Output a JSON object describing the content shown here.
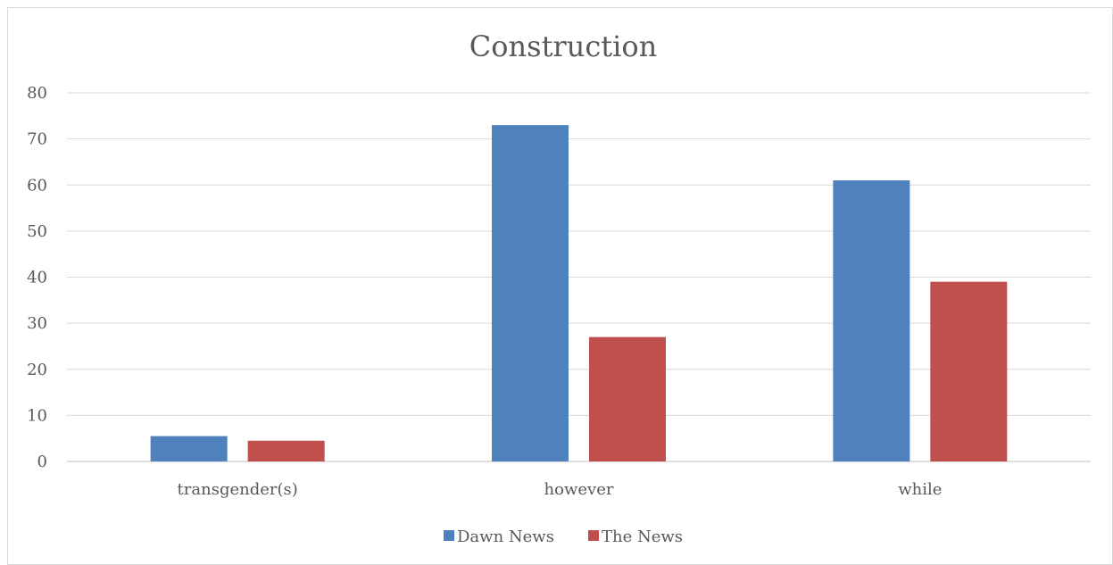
{
  "chart_data": {
    "type": "bar",
    "title": "Construction",
    "categories": [
      "transgender(s)",
      "however",
      "while"
    ],
    "series": [
      {
        "name": "Dawn News",
        "values": [
          5.5,
          73,
          61
        ],
        "color": "#4f81bd"
      },
      {
        "name": "The News",
        "values": [
          4.5,
          27,
          39
        ],
        "color": "#c0504d"
      }
    ],
    "ylim": [
      0,
      80
    ],
    "yticks": [
      "0",
      "10",
      "20",
      "30",
      "40",
      "50",
      "60",
      "70",
      "80"
    ],
    "grid": true,
    "legend_position": "bottom"
  }
}
